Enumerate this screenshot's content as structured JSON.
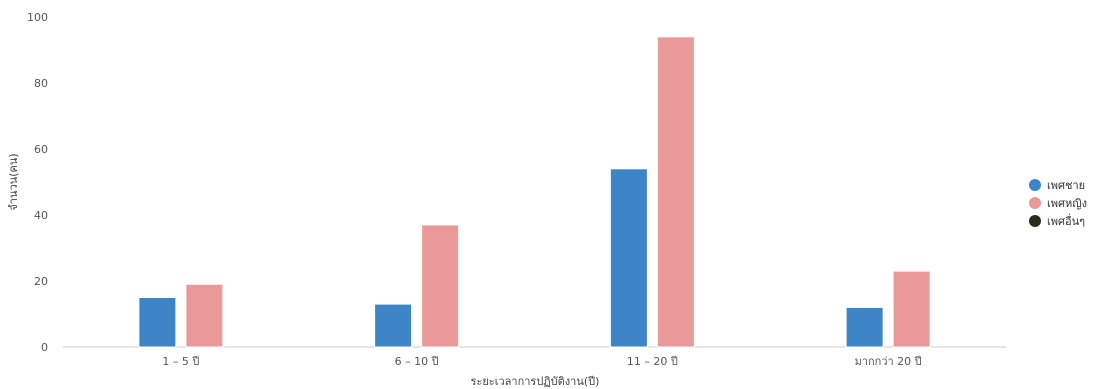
{
  "chart_data": {
    "type": "bar",
    "categories": [
      "1 – 5 ปี",
      "6 – 10 ปี",
      "11 – 20 ปี",
      "มากกว่า 20 ปี"
    ],
    "series": [
      {
        "name": "เพศชาย",
        "color": "#3d85c6",
        "values": [
          15,
          13,
          54,
          12
        ]
      },
      {
        "name": "เพศหญิง",
        "color": "#ea9999",
        "values": [
          19,
          37,
          94,
          23
        ]
      },
      {
        "name": "เพศอื่นๆ",
        "color": "#2b2b1f",
        "values": [
          0,
          0,
          0,
          0
        ]
      }
    ],
    "title": "",
    "xlabel": "ระยะเวลาการปฏิบัติงาน(ปี)",
    "ylabel": "จำนวน(คน)",
    "ylim": [
      0,
      100
    ],
    "yticks": [
      0,
      20,
      40,
      60,
      80,
      100
    ],
    "grid": false,
    "legend_position": "right"
  }
}
